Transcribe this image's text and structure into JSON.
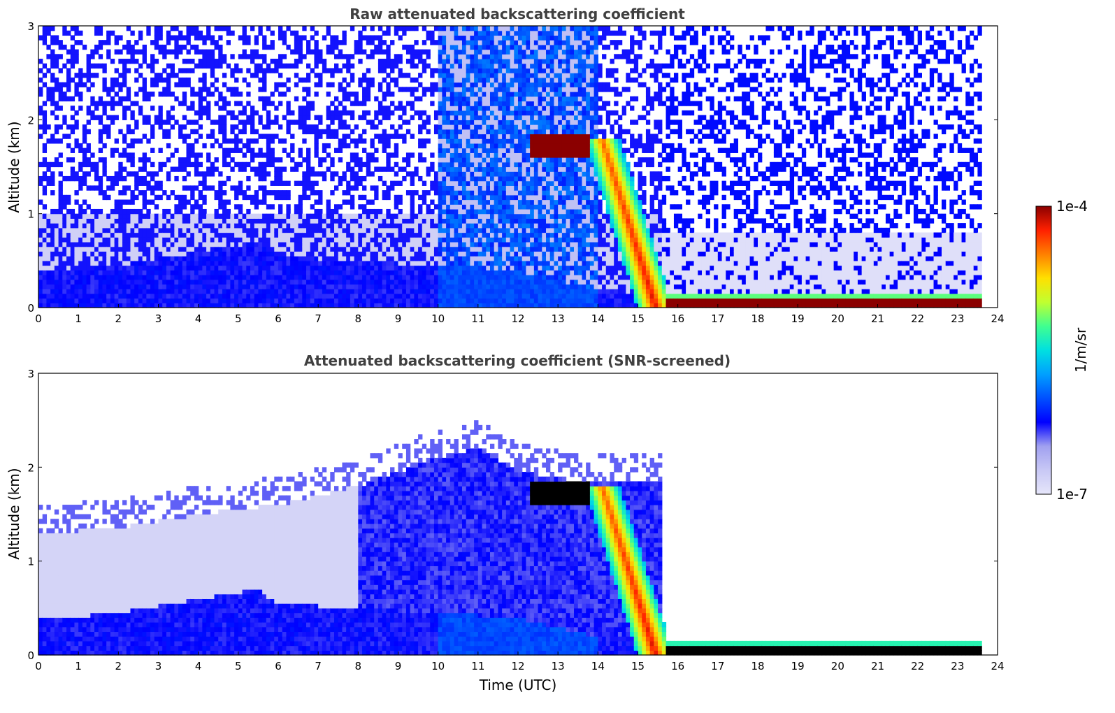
{
  "chart_data": [
    {
      "type": "heatmap",
      "title": "Raw attenuated backscattering coefficient",
      "xlabel": "",
      "ylabel": "Altitude (km)",
      "xlim": [
        0,
        24
      ],
      "ylim": [
        0,
        3
      ],
      "xticks": [
        "0",
        "1",
        "2",
        "3",
        "4",
        "5",
        "6",
        "7",
        "8",
        "9",
        "10",
        "11",
        "12",
        "13",
        "14",
        "15",
        "16",
        "17",
        "18",
        "19",
        "20",
        "21",
        "22",
        "23",
        "24"
      ],
      "yticks": [
        "0",
        "1",
        "2",
        "3"
      ],
      "data_end_time": 23.6,
      "screened": false,
      "features": {
        "boundary_layer_top_km": [
          [
            0,
            0.38
          ],
          [
            2,
            0.45
          ],
          [
            4,
            0.6
          ],
          [
            5.5,
            0.7
          ],
          [
            6,
            0.55
          ],
          [
            8,
            0.5
          ],
          [
            10,
            0.45
          ],
          [
            12,
            0.4
          ],
          [
            14,
            0.2
          ],
          [
            16,
            0.12
          ],
          [
            23.6,
            0.15
          ]
        ],
        "elevated_layer": {
          "time_range": [
            12.3,
            13.8
          ],
          "altitude_km": [
            1.6,
            1.85
          ],
          "value": "1e-4"
        },
        "precipitation_band": {
          "time_start": 13.8,
          "time_end": 15.6,
          "top_km": 1.8
        },
        "surface_band": {
          "time_range": [
            15.5,
            23.6
          ],
          "altitude_km": [
            0,
            0.15
          ],
          "value": "1e-4"
        }
      }
    },
    {
      "type": "heatmap",
      "title": "Attenuated backscattering coefficient (SNR-screened)",
      "xlabel": "Time (UTC)",
      "ylabel": "Altitude (km)",
      "xlim": [
        0,
        24
      ],
      "ylim": [
        0,
        3
      ],
      "xticks": [
        "0",
        "1",
        "2",
        "3",
        "4",
        "5",
        "6",
        "7",
        "8",
        "9",
        "10",
        "11",
        "12",
        "13",
        "14",
        "15",
        "16",
        "17",
        "18",
        "19",
        "20",
        "21",
        "22",
        "23",
        "24"
      ],
      "yticks": [
        "0",
        "1",
        "2",
        "3"
      ],
      "data_end_time": 23.6,
      "screened": true,
      "features": {
        "residual_layer_top_km": [
          [
            0,
            1.3
          ],
          [
            2,
            1.35
          ],
          [
            4,
            1.5
          ],
          [
            6,
            1.6
          ],
          [
            8,
            1.8
          ],
          [
            10,
            2.1
          ],
          [
            11,
            2.2
          ],
          [
            12,
            1.95
          ],
          [
            13.5,
            1.85
          ]
        ],
        "elevated_layer": {
          "time_range": [
            12.3,
            13.8
          ],
          "altitude_km": [
            1.6,
            1.85
          ],
          "value": "saturated"
        },
        "surface_band": {
          "time_range": [
            15.5,
            23.6
          ],
          "altitude_km": [
            0,
            0.15
          ],
          "value": "saturated"
        }
      }
    }
  ],
  "colorbar": {
    "label": "1/m/sr",
    "max_label": "1e-4",
    "min_label": "1e-7",
    "colormap": [
      "#e6e6fa",
      "#c8c8f5",
      "#a0a0f0",
      "#0000ff",
      "#0050ff",
      "#00a0ff",
      "#00e0e0",
      "#40ff90",
      "#c0ff30",
      "#ffe000",
      "#ff8000",
      "#ff2000",
      "#8b0000"
    ]
  },
  "colors": {
    "background": "#ffffff",
    "title": "#404040",
    "screened_saturation": "#000000"
  }
}
